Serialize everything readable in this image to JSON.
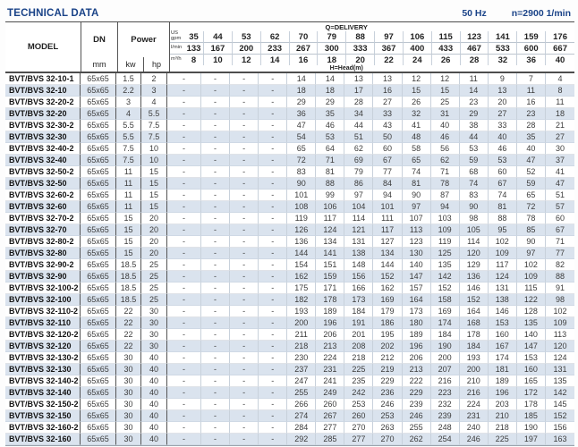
{
  "page": {
    "title": "TECHNICAL DATA",
    "frequency": "50 Hz",
    "speed": "n=2900 1/min"
  },
  "table": {
    "headers": {
      "model": "MODEL",
      "dn": "DN",
      "dn_unit": "mm",
      "power": "Power",
      "power_kw": "kw",
      "power_hp": "hp",
      "delivery_label": "Q=DELIVERY",
      "head_label": "H=Head(m)",
      "unit_gpm": "US gpm",
      "unit_lmin": "l/min",
      "unit_m3h": "m³/h"
    },
    "delivery": {
      "us_gpm": [
        "35",
        "44",
        "53",
        "62",
        "70",
        "79",
        "88",
        "97",
        "106",
        "115",
        "123",
        "141",
        "159",
        "176"
      ],
      "l_min": [
        "133",
        "167",
        "200",
        "233",
        "267",
        "300",
        "333",
        "367",
        "400",
        "433",
        "467",
        "533",
        "600",
        "667"
      ],
      "m3_h": [
        "8",
        "10",
        "12",
        "14",
        "16",
        "18",
        "20",
        "22",
        "24",
        "26",
        "28",
        "32",
        "36",
        "40"
      ]
    },
    "rows": [
      {
        "model": "BVT/BVS 32-10-1",
        "dn": "65x65",
        "kw": "1.5",
        "hp": "2",
        "head": [
          "-",
          "-",
          "-",
          "-",
          "14",
          "14",
          "13",
          "13",
          "12",
          "12",
          "11",
          "9",
          "7",
          "4"
        ]
      },
      {
        "model": "BVT/BVS 32-10",
        "dn": "65x65",
        "kw": "2.2",
        "hp": "3",
        "head": [
          "-",
          "-",
          "-",
          "-",
          "18",
          "18",
          "17",
          "16",
          "15",
          "15",
          "14",
          "13",
          "11",
          "8"
        ]
      },
      {
        "model": "BVT/BVS 32-20-2",
        "dn": "65x65",
        "kw": "3",
        "hp": "4",
        "head": [
          "-",
          "-",
          "-",
          "-",
          "29",
          "29",
          "28",
          "27",
          "26",
          "25",
          "23",
          "20",
          "16",
          "11"
        ]
      },
      {
        "model": "BVT/BVS 32-20",
        "dn": "65x65",
        "kw": "4",
        "hp": "5.5",
        "head": [
          "-",
          "-",
          "-",
          "-",
          "36",
          "35",
          "34",
          "33",
          "32",
          "31",
          "29",
          "27",
          "23",
          "18"
        ]
      },
      {
        "model": "BVT/BVS 32-30-2",
        "dn": "65x65",
        "kw": "5.5",
        "hp": "7.5",
        "head": [
          "-",
          "-",
          "-",
          "-",
          "47",
          "46",
          "44",
          "43",
          "41",
          "40",
          "38",
          "33",
          "28",
          "21"
        ]
      },
      {
        "model": "BVT/BVS 32-30",
        "dn": "65x65",
        "kw": "5.5",
        "hp": "7.5",
        "head": [
          "-",
          "-",
          "-",
          "-",
          "54",
          "53",
          "51",
          "50",
          "48",
          "46",
          "44",
          "40",
          "35",
          "27"
        ]
      },
      {
        "model": "BVT/BVS 32-40-2",
        "dn": "65x65",
        "kw": "7.5",
        "hp": "10",
        "head": [
          "-",
          "-",
          "-",
          "-",
          "65",
          "64",
          "62",
          "60",
          "58",
          "56",
          "53",
          "46",
          "40",
          "30"
        ]
      },
      {
        "model": "BVT/BVS 32-40",
        "dn": "65x65",
        "kw": "7.5",
        "hp": "10",
        "head": [
          "-",
          "-",
          "-",
          "-",
          "72",
          "71",
          "69",
          "67",
          "65",
          "62",
          "59",
          "53",
          "47",
          "37"
        ]
      },
      {
        "model": "BVT/BVS 32-50-2",
        "dn": "65x65",
        "kw": "11",
        "hp": "15",
        "head": [
          "-",
          "-",
          "-",
          "-",
          "83",
          "81",
          "79",
          "77",
          "74",
          "71",
          "68",
          "60",
          "52",
          "41"
        ]
      },
      {
        "model": "BVT/BVS 32-50",
        "dn": "65x65",
        "kw": "11",
        "hp": "15",
        "head": [
          "-",
          "-",
          "-",
          "-",
          "90",
          "88",
          "86",
          "84",
          "81",
          "78",
          "74",
          "67",
          "59",
          "47"
        ]
      },
      {
        "model": "BVT/BVS 32-60-2",
        "dn": "65x65",
        "kw": "11",
        "hp": "15",
        "head": [
          "-",
          "-",
          "-",
          "-",
          "101",
          "99",
          "97",
          "94",
          "90",
          "87",
          "83",
          "74",
          "65",
          "51"
        ]
      },
      {
        "model": "BVT/BVS 32-60",
        "dn": "65x65",
        "kw": "11",
        "hp": "15",
        "head": [
          "-",
          "-",
          "-",
          "-",
          "108",
          "106",
          "104",
          "101",
          "97",
          "94",
          "90",
          "81",
          "72",
          "57"
        ]
      },
      {
        "model": "BVT/BVS 32-70-2",
        "dn": "65x65",
        "kw": "15",
        "hp": "20",
        "head": [
          "-",
          "-",
          "-",
          "-",
          "119",
          "117",
          "114",
          "111",
          "107",
          "103",
          "98",
          "88",
          "78",
          "60"
        ]
      },
      {
        "model": "BVT/BVS 32-70",
        "dn": "65x65",
        "kw": "15",
        "hp": "20",
        "head": [
          "-",
          "-",
          "-",
          "-",
          "126",
          "124",
          "121",
          "117",
          "113",
          "109",
          "105",
          "95",
          "85",
          "67"
        ]
      },
      {
        "model": "BVT/BVS 32-80-2",
        "dn": "65x65",
        "kw": "15",
        "hp": "20",
        "head": [
          "-",
          "-",
          "-",
          "-",
          "136",
          "134",
          "131",
          "127",
          "123",
          "119",
          "114",
          "102",
          "90",
          "71"
        ]
      },
      {
        "model": "BVT/BVS 32-80",
        "dn": "65x65",
        "kw": "15",
        "hp": "20",
        "head": [
          "-",
          "-",
          "-",
          "-",
          "144",
          "141",
          "138",
          "134",
          "130",
          "125",
          "120",
          "109",
          "97",
          "77"
        ]
      },
      {
        "model": "BVT/BVS 32-90-2",
        "dn": "65x65",
        "kw": "18.5",
        "hp": "25",
        "head": [
          "-",
          "-",
          "-",
          "-",
          "154",
          "151",
          "148",
          "144",
          "140",
          "135",
          "129",
          "117",
          "102",
          "82"
        ]
      },
      {
        "model": "BVT/BVS 32-90",
        "dn": "65x65",
        "kw": "18.5",
        "hp": "25",
        "head": [
          "-",
          "-",
          "-",
          "-",
          "162",
          "159",
          "156",
          "152",
          "147",
          "142",
          "136",
          "124",
          "109",
          "88"
        ]
      },
      {
        "model": "BVT/BVS 32-100-2",
        "dn": "65x65",
        "kw": "18.5",
        "hp": "25",
        "head": [
          "-",
          "-",
          "-",
          "-",
          "175",
          "171",
          "166",
          "162",
          "157",
          "152",
          "146",
          "131",
          "115",
          "91"
        ]
      },
      {
        "model": "BVT/BVS 32-100",
        "dn": "65x65",
        "kw": "18.5",
        "hp": "25",
        "head": [
          "-",
          "-",
          "-",
          "-",
          "182",
          "178",
          "173",
          "169",
          "164",
          "158",
          "152",
          "138",
          "122",
          "98"
        ]
      },
      {
        "model": "BVT/BVS 32-110-2",
        "dn": "65x65",
        "kw": "22",
        "hp": "30",
        "head": [
          "-",
          "-",
          "-",
          "-",
          "193",
          "189",
          "184",
          "179",
          "173",
          "169",
          "164",
          "146",
          "128",
          "102"
        ]
      },
      {
        "model": "BVT/BVS 32-110",
        "dn": "65x65",
        "kw": "22",
        "hp": "30",
        "head": [
          "-",
          "-",
          "-",
          "-",
          "200",
          "196",
          "191",
          "186",
          "180",
          "174",
          "168",
          "153",
          "135",
          "109"
        ]
      },
      {
        "model": "BVT/BVS 32-120-2",
        "dn": "65x65",
        "kw": "22",
        "hp": "30",
        "head": [
          "-",
          "-",
          "-",
          "-",
          "211",
          "206",
          "201",
          "195",
          "189",
          "184",
          "178",
          "160",
          "140",
          "113"
        ]
      },
      {
        "model": "BVT/BVS 32-120",
        "dn": "65x65",
        "kw": "22",
        "hp": "30",
        "head": [
          "-",
          "-",
          "-",
          "-",
          "218",
          "213",
          "208",
          "202",
          "196",
          "190",
          "184",
          "167",
          "147",
          "120"
        ]
      },
      {
        "model": "BVT/BVS 32-130-2",
        "dn": "65x65",
        "kw": "30",
        "hp": "40",
        "head": [
          "-",
          "-",
          "-",
          "-",
          "230",
          "224",
          "218",
          "212",
          "206",
          "200",
          "193",
          "174",
          "153",
          "124"
        ]
      },
      {
        "model": "BVT/BVS 32-130",
        "dn": "65x65",
        "kw": "30",
        "hp": "40",
        "head": [
          "-",
          "-",
          "-",
          "-",
          "237",
          "231",
          "225",
          "219",
          "213",
          "207",
          "200",
          "181",
          "160",
          "131"
        ]
      },
      {
        "model": "BVT/BVS 32-140-2",
        "dn": "65x65",
        "kw": "30",
        "hp": "40",
        "head": [
          "-",
          "-",
          "-",
          "-",
          "247",
          "241",
          "235",
          "229",
          "222",
          "216",
          "210",
          "189",
          "165",
          "135"
        ]
      },
      {
        "model": "BVT/BVS 32-140",
        "dn": "65x65",
        "kw": "30",
        "hp": "40",
        "head": [
          "-",
          "-",
          "-",
          "-",
          "255",
          "249",
          "242",
          "236",
          "229",
          "223",
          "216",
          "196",
          "172",
          "142"
        ]
      },
      {
        "model": "BVT/BVS 32-150-2",
        "dn": "65x65",
        "kw": "30",
        "hp": "40",
        "head": [
          "-",
          "-",
          "-",
          "-",
          "266",
          "260",
          "253",
          "246",
          "239",
          "232",
          "224",
          "203",
          "178",
          "145"
        ]
      },
      {
        "model": "BVT/BVS 32-150",
        "dn": "65x65",
        "kw": "30",
        "hp": "40",
        "head": [
          "-",
          "-",
          "-",
          "-",
          "274",
          "267",
          "260",
          "253",
          "246",
          "239",
          "231",
          "210",
          "185",
          "152"
        ]
      },
      {
        "model": "BVT/BVS 32-160-2",
        "dn": "65x65",
        "kw": "30",
        "hp": "40",
        "head": [
          "-",
          "-",
          "-",
          "-",
          "284",
          "277",
          "270",
          "263",
          "255",
          "248",
          "240",
          "218",
          "190",
          "156"
        ]
      },
      {
        "model": "BVT/BVS 32-160",
        "dn": "65x65",
        "kw": "30",
        "hp": "40",
        "head": [
          "-",
          "-",
          "-",
          "-",
          "292",
          "285",
          "277",
          "270",
          "262",
          "254",
          "246",
          "225",
          "197",
          "163"
        ]
      }
    ]
  },
  "colors": {
    "accent_blue": "#1a4388",
    "stripe": "#dae3ee",
    "dark_border": "#4d4d4d"
  }
}
